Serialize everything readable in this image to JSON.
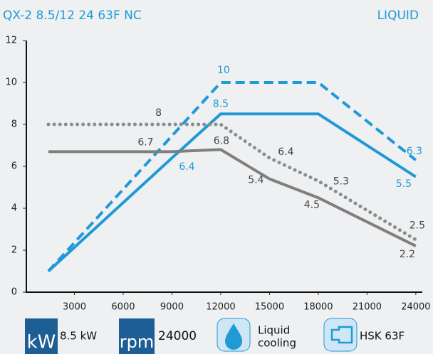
{
  "header": {
    "title": "QX-2 8.5/12 24 63F NC",
    "badge": "LIQUID"
  },
  "chart_data": {
    "type": "line",
    "xlim": [
      0,
      24400
    ],
    "ylim": [
      0,
      12
    ],
    "xticks": [
      3000,
      6000,
      9000,
      12000,
      15000,
      18000,
      21000,
      24000
    ],
    "yticks": [
      0,
      2,
      4,
      6,
      8,
      10,
      12
    ],
    "grid": false,
    "series": [
      {
        "color": "#1f9ad6",
        "style": "solid",
        "x": [
          1400,
          9000,
          12000,
          18000,
          24000
        ],
        "values": [
          1,
          6.4,
          8.5,
          8.5,
          5.5
        ],
        "value_labels": [
          null,
          "6.4",
          "8.5",
          null,
          "5.5"
        ]
      },
      {
        "color": "#1f9ad6",
        "style": "dashed",
        "x": [
          1400,
          12000,
          18000,
          24000
        ],
        "values": [
          1,
          10,
          10,
          6.3
        ],
        "value_labels": [
          null,
          "10",
          null,
          "6.3"
        ]
      },
      {
        "color": "#7f7f7f",
        "style": "solid",
        "x": [
          1400,
          9000,
          12000,
          15000,
          18000,
          24000
        ],
        "values": [
          6.7,
          6.7,
          6.8,
          5.4,
          4.5,
          2.2
        ],
        "value_labels": [
          null,
          "6.7",
          "6.8",
          "5.4",
          "4.5",
          "2.2"
        ]
      },
      {
        "color": "#8c8c8c",
        "style": "dotted",
        "x": [
          1400,
          8000,
          12000,
          15000,
          18000,
          24000
        ],
        "values": [
          8,
          8,
          8,
          6.4,
          5.3,
          2.5
        ],
        "value_labels": [
          null,
          "8",
          null,
          "6.4",
          "5.3",
          "2.5"
        ]
      }
    ]
  },
  "features": [
    {
      "icon": "kW",
      "label": "8.5 kW"
    },
    {
      "icon": "rpm",
      "label": "24000"
    },
    {
      "label_lines": [
        "Liquid",
        "cooling"
      ]
    },
    {
      "label": "HSK 63F"
    }
  ]
}
